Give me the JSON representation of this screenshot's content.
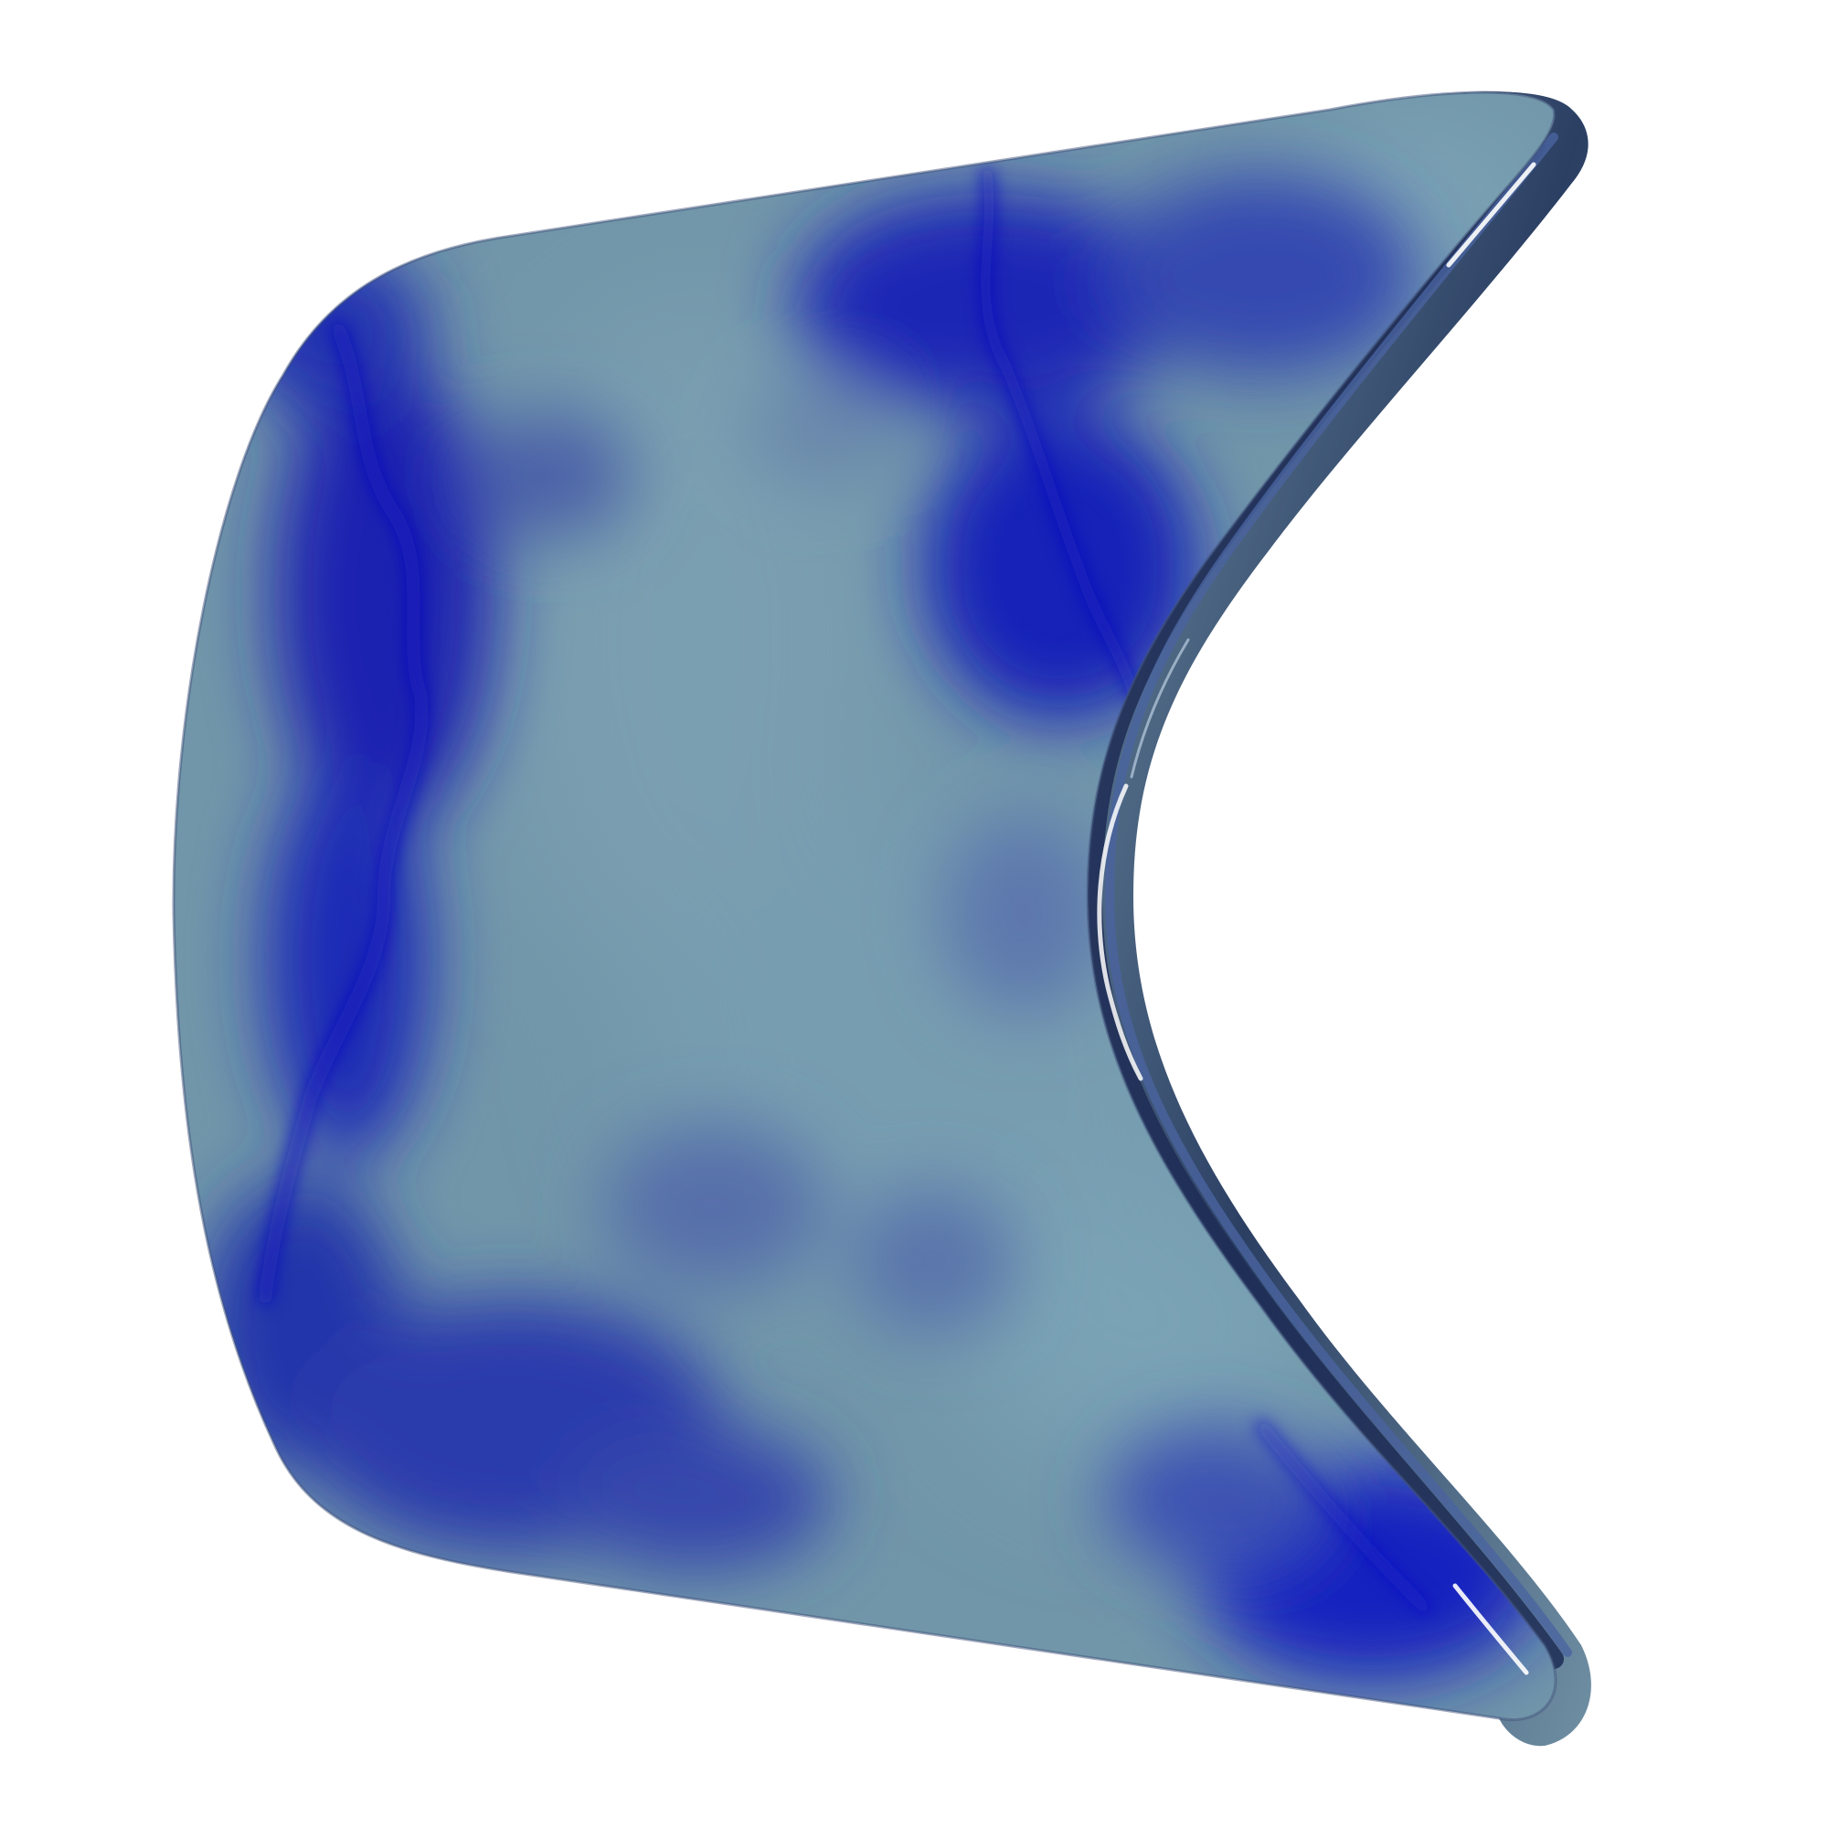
{
  "scene": {
    "background_color": "#ffffff",
    "subject": "curved-3d-blade-object",
    "colors": {
      "deep_blue": "#1018b8",
      "mid_blue": "#3a50b0",
      "grey_blue": "#7096a8",
      "light_grey_blue": "#7aa2b4",
      "edge_dark": "#2a3f5a",
      "edge_light": "#7e9cb0",
      "highlight": "#ffffff"
    }
  }
}
